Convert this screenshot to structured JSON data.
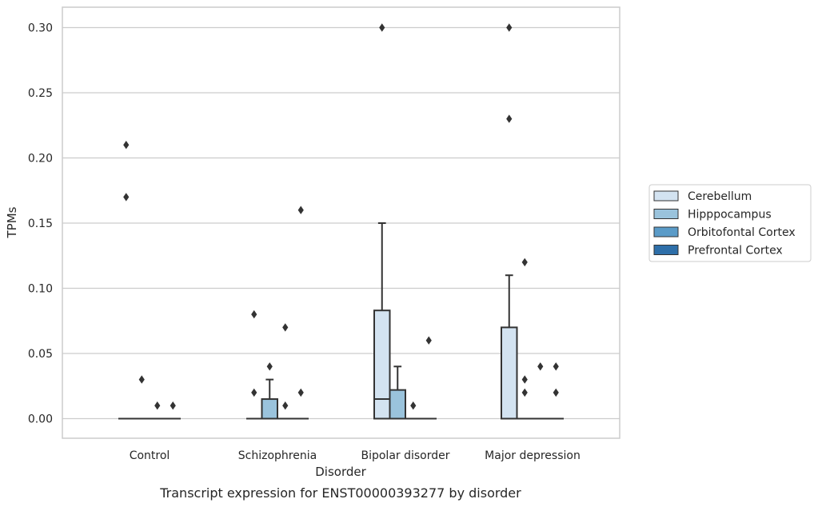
{
  "chart_data": {
    "type": "box",
    "title": "",
    "caption": "Transcript expression for ENST00000393277 by disorder",
    "xlabel": "Disorder",
    "ylabel": "TPMs",
    "ylim": [
      -0.015,
      0.315
    ],
    "yticks": [
      "0.00",
      "0.05",
      "0.10",
      "0.15",
      "0.20",
      "0.25",
      "0.30"
    ],
    "ytick_values": [
      0,
      0.05,
      0.1,
      0.15,
      0.2,
      0.25,
      0.3
    ],
    "grid": true,
    "legend_position": "right",
    "categories": [
      "Control",
      "Schizophrenia",
      "Bipolar disorder",
      "Major depression"
    ],
    "series": [
      {
        "name": "Cerebellum",
        "color": "#d3e3f1",
        "boxes": [
          {
            "q1": 0,
            "median": 0,
            "q3": 0,
            "whisker_low": 0,
            "whisker_high": 0,
            "outliers": [
              0.21,
              0.17
            ]
          },
          {
            "q1": 0,
            "median": 0,
            "q3": 0,
            "whisker_low": 0,
            "whisker_high": 0,
            "outliers": [
              0.08,
              0.02
            ]
          },
          {
            "q1": 0,
            "median": 0.015,
            "q3": 0.083,
            "whisker_low": 0,
            "whisker_high": 0.15,
            "outliers": [
              0.3
            ]
          },
          {
            "q1": 0,
            "median": 0,
            "q3": 0.07,
            "whisker_low": 0,
            "whisker_high": 0.11,
            "outliers": [
              0.3,
              0.23
            ]
          }
        ]
      },
      {
        "name": "Hipppocampus",
        "color": "#9ac3dc",
        "boxes": [
          {
            "q1": 0,
            "median": 0,
            "q3": 0,
            "whisker_low": 0,
            "whisker_high": 0,
            "outliers": [
              0.03
            ]
          },
          {
            "q1": 0,
            "median": 0,
            "q3": 0.015,
            "whisker_low": 0,
            "whisker_high": 0.03,
            "outliers": [
              0.04
            ]
          },
          {
            "q1": 0,
            "median": 0,
            "q3": 0.022,
            "whisker_low": 0,
            "whisker_high": 0.04,
            "outliers": []
          },
          {
            "q1": 0,
            "median": 0,
            "q3": 0,
            "whisker_low": 0,
            "whisker_high": 0,
            "outliers": [
              0.12,
              0.03,
              0.02
            ]
          }
        ]
      },
      {
        "name": "Orbitofontal Cortex",
        "color": "#5a9bc8",
        "boxes": [
          {
            "q1": 0,
            "median": 0,
            "q3": 0,
            "whisker_low": 0,
            "whisker_high": 0,
            "outliers": [
              0.01
            ]
          },
          {
            "q1": 0,
            "median": 0,
            "q3": 0,
            "whisker_low": 0,
            "whisker_high": 0,
            "outliers": [
              0.07,
              0.01
            ]
          },
          {
            "q1": 0,
            "median": 0,
            "q3": 0,
            "whisker_low": 0,
            "whisker_high": 0,
            "outliers": [
              0.01
            ]
          },
          {
            "q1": 0,
            "median": 0,
            "q3": 0,
            "whisker_low": 0,
            "whisker_high": 0,
            "outliers": [
              0.04
            ]
          }
        ]
      },
      {
        "name": "Prefrontal Cortex",
        "color": "#2e6fa9",
        "boxes": [
          {
            "q1": 0,
            "median": 0,
            "q3": 0,
            "whisker_low": 0,
            "whisker_high": 0,
            "outliers": [
              0.01
            ]
          },
          {
            "q1": 0,
            "median": 0,
            "q3": 0,
            "whisker_low": 0,
            "whisker_high": 0,
            "outliers": [
              0.16,
              0.02
            ]
          },
          {
            "q1": 0,
            "median": 0,
            "q3": 0,
            "whisker_low": 0,
            "whisker_high": 0,
            "outliers": [
              0.06
            ]
          },
          {
            "q1": 0,
            "median": 0,
            "q3": 0,
            "whisker_low": 0,
            "whisker_high": 0,
            "outliers": [
              0.04,
              0.02
            ]
          }
        ]
      }
    ]
  },
  "colors": {
    "grid": "#cccccc",
    "frame": "#cccccc",
    "line": "#333333",
    "text": "#262626"
  }
}
